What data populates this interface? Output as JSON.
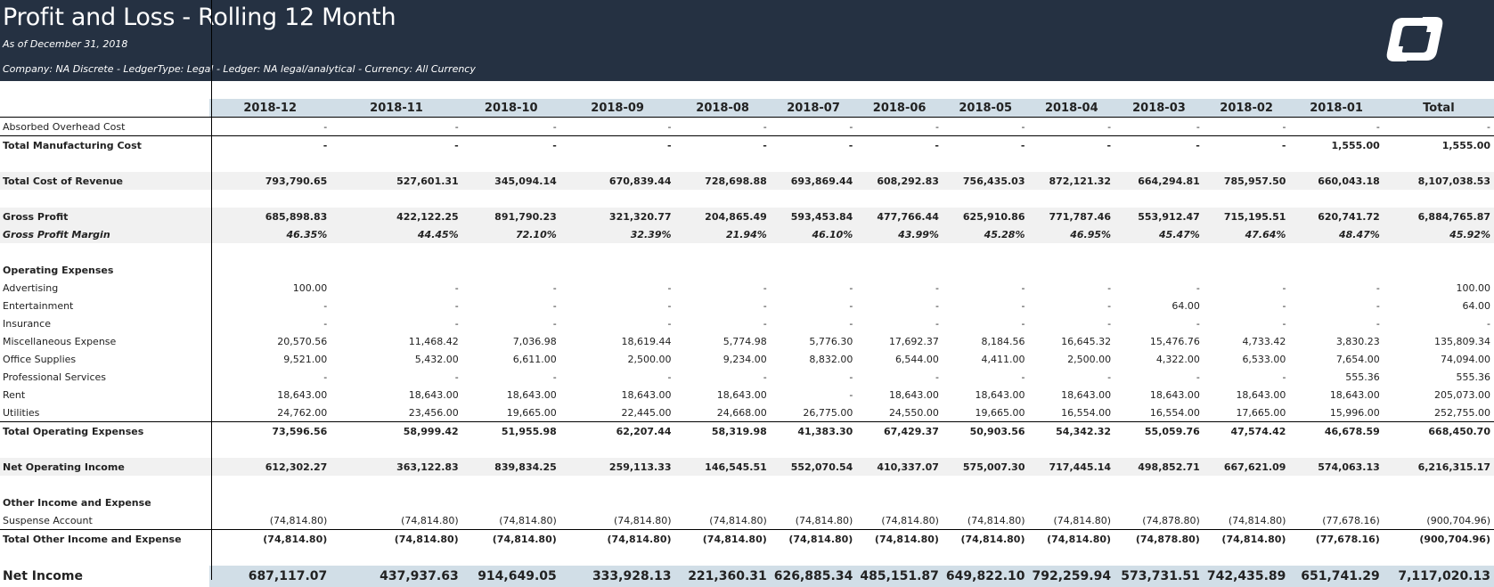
{
  "header": {
    "title": "Profit and Loss - Rolling 12 Month",
    "as_of": "As of December 31, 2018",
    "filters": "Company: NA Discrete  - LedgerType: Legal  - Ledger: NA legal/analytical - Currency: All Currency",
    "logo_icon": "company-logo-icon"
  },
  "columns": [
    "2018-12",
    "2018-11",
    "2018-10",
    "2018-09",
    "2018-08",
    "2018-07",
    "2018-06",
    "2018-05",
    "2018-04",
    "2018-03",
    "2018-02",
    "2018-01",
    "Total"
  ],
  "rows": [
    {
      "label": "Absorbed Overhead Cost",
      "style": "",
      "values": [
        "-",
        "-",
        "-",
        "-",
        "-",
        "-",
        "-",
        "-",
        "-",
        "-",
        "-",
        "-",
        "-"
      ]
    },
    {
      "label": "Total Manufacturing Cost",
      "style": "total",
      "values": [
        "-",
        "-",
        "-",
        "-",
        "-",
        "-",
        "-",
        "-",
        "-",
        "-",
        "-",
        "1,555.00",
        "1,555.00"
      ]
    },
    {
      "label": "",
      "style": "blank",
      "values": []
    },
    {
      "label": "Total Cost of Revenue",
      "style": "bold shade",
      "values": [
        "793,790.65",
        "527,601.31",
        "345,094.14",
        "670,839.44",
        "728,698.88",
        "693,869.44",
        "608,292.83",
        "756,435.03",
        "872,121.32",
        "664,294.81",
        "785,957.50",
        "660,043.18",
        "8,107,038.53"
      ]
    },
    {
      "label": "",
      "style": "blank",
      "values": []
    },
    {
      "label": "Gross Profit",
      "style": "bold shade",
      "values": [
        "685,898.83",
        "422,122.25",
        "891,790.23",
        "321,320.77",
        "204,865.49",
        "593,453.84",
        "477,766.44",
        "625,910.86",
        "771,787.46",
        "553,912.47",
        "715,195.51",
        "620,741.72",
        "6,884,765.87"
      ]
    },
    {
      "label": "Gross Profit Margin",
      "style": "italic shade",
      "values": [
        "46.35%",
        "44.45%",
        "72.10%",
        "32.39%",
        "21.94%",
        "46.10%",
        "43.99%",
        "45.28%",
        "46.95%",
        "45.47%",
        "47.64%",
        "48.47%",
        "45.92%"
      ]
    },
    {
      "label": "",
      "style": "blank",
      "values": []
    },
    {
      "label": "Operating Expenses",
      "style": "section",
      "values": []
    },
    {
      "label": "Advertising",
      "style": "",
      "values": [
        "100.00",
        "-",
        "-",
        "-",
        "-",
        "-",
        "-",
        "-",
        "-",
        "-",
        "-",
        "-",
        "100.00"
      ]
    },
    {
      "label": "Entertainment",
      "style": "",
      "values": [
        "-",
        "-",
        "-",
        "-",
        "-",
        "-",
        "-",
        "-",
        "-",
        "64.00",
        "-",
        "-",
        "64.00"
      ]
    },
    {
      "label": "Insurance",
      "style": "",
      "values": [
        "-",
        "-",
        "-",
        "-",
        "-",
        "-",
        "-",
        "-",
        "-",
        "-",
        "-",
        "-",
        "-"
      ]
    },
    {
      "label": "Miscellaneous Expense",
      "style": "",
      "values": [
        "20,570.56",
        "11,468.42",
        "7,036.98",
        "18,619.44",
        "5,774.98",
        "5,776.30",
        "17,692.37",
        "8,184.56",
        "16,645.32",
        "15,476.76",
        "4,733.42",
        "3,830.23",
        "135,809.34"
      ]
    },
    {
      "label": "Office Supplies",
      "style": "",
      "values": [
        "9,521.00",
        "5,432.00",
        "6,611.00",
        "2,500.00",
        "9,234.00",
        "8,832.00",
        "6,544.00",
        "4,411.00",
        "2,500.00",
        "4,322.00",
        "6,533.00",
        "7,654.00",
        "74,094.00"
      ]
    },
    {
      "label": "Professional Services",
      "style": "",
      "values": [
        "-",
        "-",
        "-",
        "-",
        "-",
        "-",
        "-",
        "-",
        "-",
        "-",
        "-",
        "555.36",
        "555.36"
      ]
    },
    {
      "label": "Rent",
      "style": "",
      "values": [
        "18,643.00",
        "18,643.00",
        "18,643.00",
        "18,643.00",
        "18,643.00",
        "-",
        "18,643.00",
        "18,643.00",
        "18,643.00",
        "18,643.00",
        "18,643.00",
        "18,643.00",
        "205,073.00"
      ]
    },
    {
      "label": "Utilities",
      "style": "",
      "values": [
        "24,762.00",
        "23,456.00",
        "19,665.00",
        "22,445.00",
        "24,668.00",
        "26,775.00",
        "24,550.00",
        "19,665.00",
        "16,554.00",
        "16,554.00",
        "17,665.00",
        "15,996.00",
        "252,755.00"
      ]
    },
    {
      "label": "Total Operating Expenses",
      "style": "total",
      "values": [
        "73,596.56",
        "58,999.42",
        "51,955.98",
        "62,207.44",
        "58,319.98",
        "41,383.30",
        "67,429.37",
        "50,903.56",
        "54,342.32",
        "55,059.76",
        "47,574.42",
        "46,678.59",
        "668,450.70"
      ]
    },
    {
      "label": "",
      "style": "blank",
      "values": []
    },
    {
      "label": "Net Operating Income",
      "style": "bold shade",
      "values": [
        "612,302.27",
        "363,122.83",
        "839,834.25",
        "259,113.33",
        "146,545.51",
        "552,070.54",
        "410,337.07",
        "575,007.30",
        "717,445.14",
        "498,852.71",
        "667,621.09",
        "574,063.13",
        "6,216,315.17"
      ]
    },
    {
      "label": "",
      "style": "blank",
      "values": []
    },
    {
      "label": "Other Income and Expense",
      "style": "section",
      "values": []
    },
    {
      "label": "Suspense Account",
      "style": "",
      "values": [
        "(74,814.80)",
        "(74,814.80)",
        "(74,814.80)",
        "(74,814.80)",
        "(74,814.80)",
        "(74,814.80)",
        "(74,814.80)",
        "(74,814.80)",
        "(74,814.80)",
        "(74,878.80)",
        "(74,814.80)",
        "(77,678.16)",
        "(900,704.96)"
      ]
    },
    {
      "label": "Total Other Income and Expense",
      "style": "total",
      "values": [
        "(74,814.80)",
        "(74,814.80)",
        "(74,814.80)",
        "(74,814.80)",
        "(74,814.80)",
        "(74,814.80)",
        "(74,814.80)",
        "(74,814.80)",
        "(74,814.80)",
        "(74,878.80)",
        "(74,814.80)",
        "(77,678.16)",
        "(900,704.96)"
      ]
    },
    {
      "label": "",
      "style": "blank",
      "values": []
    },
    {
      "label": "Net Income",
      "style": "net",
      "values": [
        "687,117.07",
        "437,937.63",
        "914,649.05",
        "333,928.13",
        "221,360.31",
        "626,885.34",
        "485,151.87",
        "649,822.10",
        "792,259.94",
        "573,731.51",
        "742,435.89",
        "651,741.29",
        "7,117,020.13"
      ]
    }
  ]
}
